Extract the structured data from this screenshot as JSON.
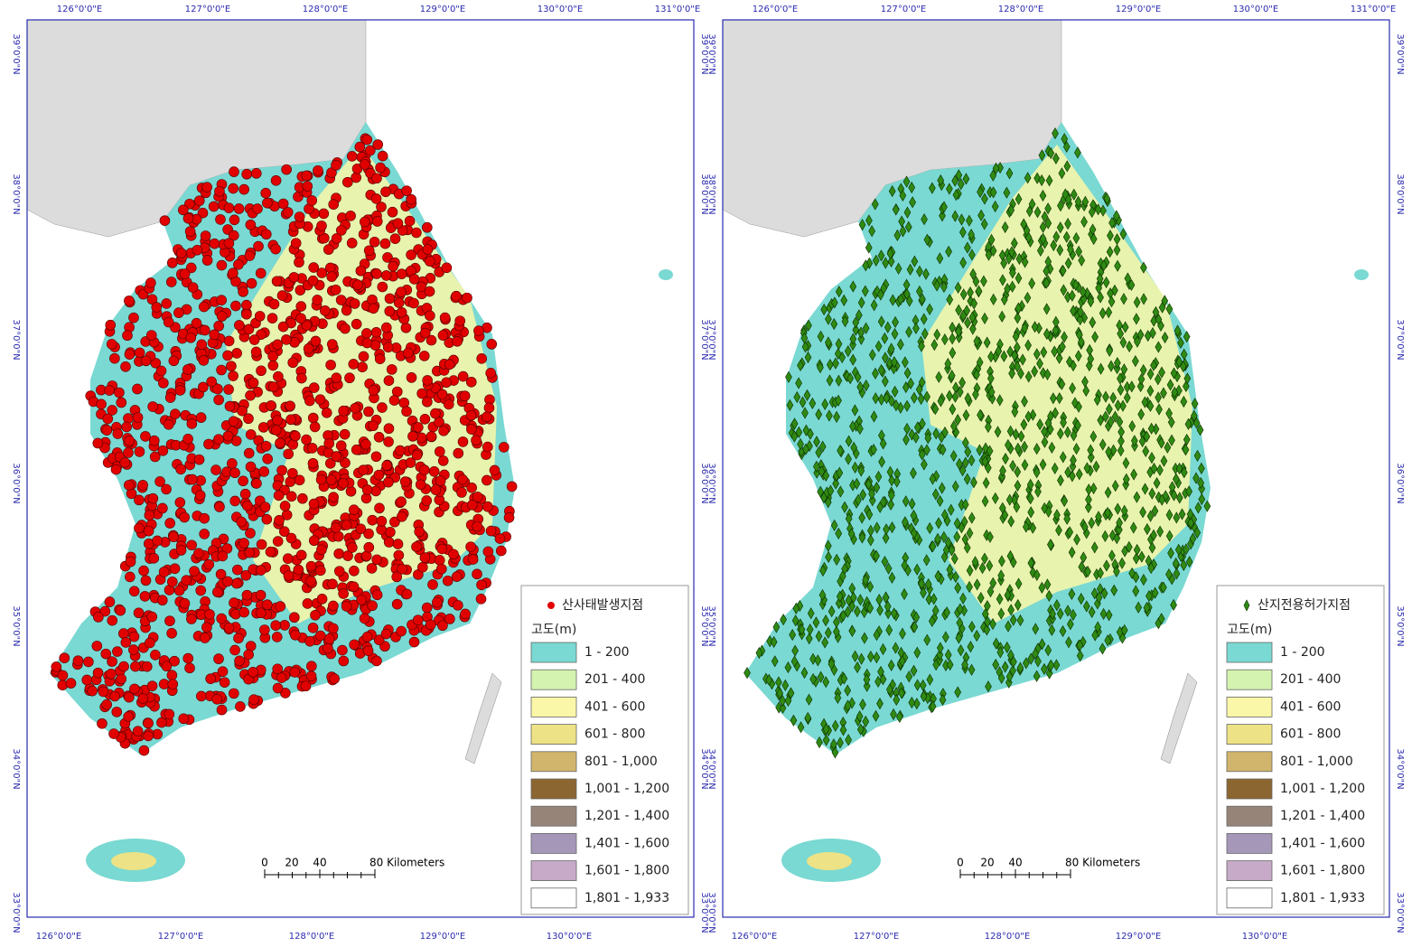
{
  "graticule": {
    "top": [
      "126°0'0\"E",
      "127°0'0\"E",
      "128°0'0\"E",
      "129°0'0\"E",
      "130°0'0\"E",
      "131°0'0\"E"
    ],
    "bottom": [
      "126°0'0\"E",
      "127°0'0\"E",
      "128°0'0\"E",
      "129°0'0\"E",
      "130°0'0\"E"
    ],
    "lat": [
      "33°0'0\"N",
      "34°0'0\"N",
      "35°0'0\"N",
      "36°0'0\"N",
      "37°0'0\"N",
      "38°0'0\"N",
      "39°0'0\"N"
    ]
  },
  "legend": {
    "title": "고도(m)",
    "classes": [
      {
        "label": "1 - 200",
        "color": "#7ad9d2"
      },
      {
        "label": "201 - 400",
        "color": "#d4f2b0"
      },
      {
        "label": "401 - 600",
        "color": "#fbf7a8"
      },
      {
        "label": "601 - 800",
        "color": "#ede285"
      },
      {
        "label": "801 - 1,000",
        "color": "#d1b56c"
      },
      {
        "label": "1,001 - 1,200",
        "color": "#8c6631"
      },
      {
        "label": "1,201 - 1,400",
        "color": "#978479"
      },
      {
        "label": "1,401 - 1,600",
        "color": "#a597b8"
      },
      {
        "label": "1,601 - 1,800",
        "color": "#c7aac8"
      },
      {
        "label": "1,801 - 1,933",
        "color": "#ffffff"
      }
    ]
  },
  "scale_bar": [
    "0",
    "20",
    "40",
    "80 Kilometers"
  ],
  "panels": [
    {
      "point_label": "산사태발생지점",
      "point_color": "#e00000"
    },
    {
      "point_label": "산지전용허가지점",
      "point_color": "#2f8a12"
    }
  ]
}
